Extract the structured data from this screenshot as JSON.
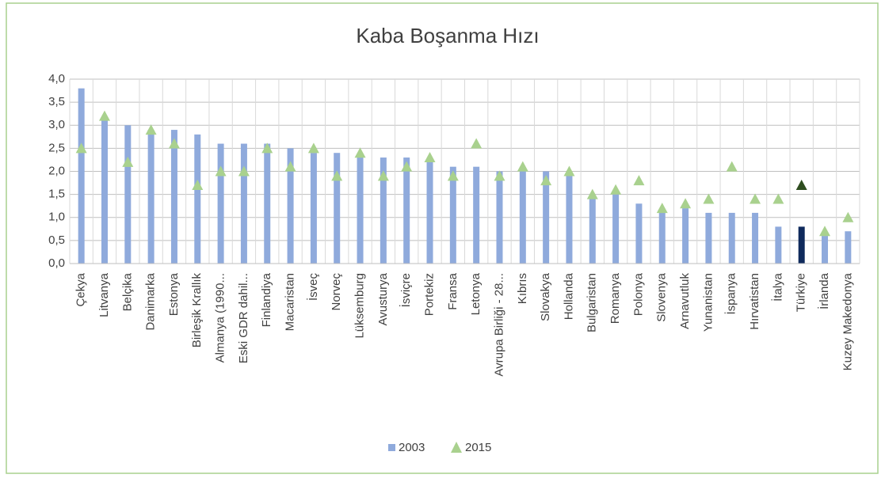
{
  "chart_data": {
    "type": "bar_marker",
    "title": "Kaba Boşanma Hızı",
    "categories": [
      "Çekya",
      "Litvanya",
      "Belçika",
      "Danimarka",
      "Estonya",
      "Birleşik Krallık",
      "Almanya (1990...",
      "Eski GDR dahil...",
      "Finlandiya",
      "Macaristan",
      "İsveç",
      "Norveç",
      "Lüksemburg",
      "Avusturya",
      "İsviçre",
      "Portekiz",
      "Fransa",
      "Letonya",
      "Avrupa Birliği - 28...",
      "Kıbrıs",
      "Slovakya",
      "Hollanda",
      "Bulgaristan",
      "Romanya",
      "Polonya",
      "Slovenya",
      "Arnavutluk",
      "Yunanistan",
      "İspanya",
      "Hırvatistan",
      "İtalya",
      "Türkiye",
      "İrlanda",
      "Kuzey Makedonya"
    ],
    "series": [
      {
        "name": "2003",
        "kind": "bar",
        "color": "#8faadc",
        "highlight_color": "#0f2a5c",
        "values": [
          3.8,
          3.1,
          3.0,
          2.9,
          2.9,
          2.8,
          2.6,
          2.6,
          2.6,
          2.5,
          2.4,
          2.4,
          2.3,
          2.3,
          2.3,
          2.2,
          2.1,
          2.1,
          2.0,
          2.0,
          2.0,
          1.9,
          1.4,
          1.5,
          1.3,
          1.1,
          1.2,
          1.1,
          1.1,
          1.1,
          0.8,
          0.8,
          0.6,
          0.7
        ]
      },
      {
        "name": "2015",
        "kind": "marker",
        "color": "#a9d18e",
        "highlight_color": "#2e4d1f",
        "values": [
          2.5,
          3.2,
          2.2,
          2.9,
          2.6,
          1.7,
          2.0,
          2.0,
          2.5,
          2.1,
          2.5,
          1.9,
          2.4,
          1.9,
          2.1,
          2.3,
          1.9,
          2.6,
          1.9,
          2.1,
          1.8,
          2.0,
          1.5,
          1.6,
          1.8,
          1.2,
          1.3,
          1.4,
          2.1,
          1.4,
          1.4,
          1.7,
          0.7,
          1.0
        ]
      }
    ],
    "highlight": "Türkiye",
    "ylim": [
      0,
      4
    ],
    "yticks": [
      {
        "value": 0,
        "label": "0,0"
      },
      {
        "value": 0.5,
        "label": "0,5"
      },
      {
        "value": 1,
        "label": "1,0"
      },
      {
        "value": 1.5,
        "label": "1,5"
      },
      {
        "value": 2,
        "label": "2,0"
      },
      {
        "value": 2.5,
        "label": "2,5"
      },
      {
        "value": 3,
        "label": "3,0"
      },
      {
        "value": 3.5,
        "label": "3,5"
      },
      {
        "value": 4,
        "label": "4,0"
      }
    ],
    "grid": true,
    "legend": "bottom"
  }
}
